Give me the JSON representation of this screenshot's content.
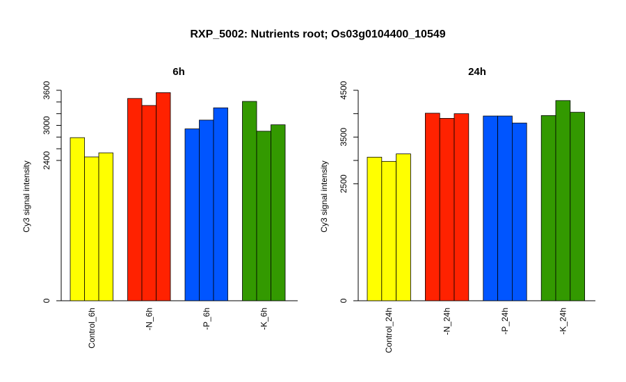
{
  "figure": {
    "title": "RXP_5002: Nutrients root; Os03g0104400_10549"
  },
  "colors": {
    "control": "#ffff00",
    "n": "#ff2200",
    "p": "#0055ff",
    "k": "#339900"
  },
  "chart_data": [
    {
      "type": "bar",
      "title": "6h",
      "ylabel": "Cy3 signal intensity",
      "ylim": [
        0,
        3600
      ],
      "yticks": [
        0,
        2400,
        3000,
        3600
      ],
      "minor_ticks": [
        2600,
        2800,
        3200,
        3400
      ],
      "categories": [
        "Control_6h",
        "-N_6h",
        "-P_6h",
        "-K_6h"
      ],
      "group_colors": [
        "#ffff00",
        "#ff2200",
        "#0055ff",
        "#339900"
      ],
      "values": [
        [
          2790,
          2460,
          2530
        ],
        [
          3460,
          3340,
          3560
        ],
        [
          2940,
          3090,
          3300
        ],
        [
          3410,
          2900,
          3010
        ]
      ]
    },
    {
      "type": "bar",
      "title": "24h",
      "ylabel": "Cy3 signal intensity",
      "ylim": [
        0,
        4500
      ],
      "yticks": [
        0,
        2500,
        3500,
        4500
      ],
      "minor_ticks": [
        3000,
        4000
      ],
      "categories": [
        "Control_24h",
        "-N_24h",
        "-P_24h",
        "-K_24h"
      ],
      "group_colors": [
        "#ffff00",
        "#ff2200",
        "#0055ff",
        "#339900"
      ],
      "values": [
        [
          3070,
          2980,
          3140
        ],
        [
          4010,
          3900,
          4000
        ],
        [
          3950,
          3950,
          3800
        ],
        [
          3960,
          4280,
          4030
        ]
      ]
    }
  ]
}
